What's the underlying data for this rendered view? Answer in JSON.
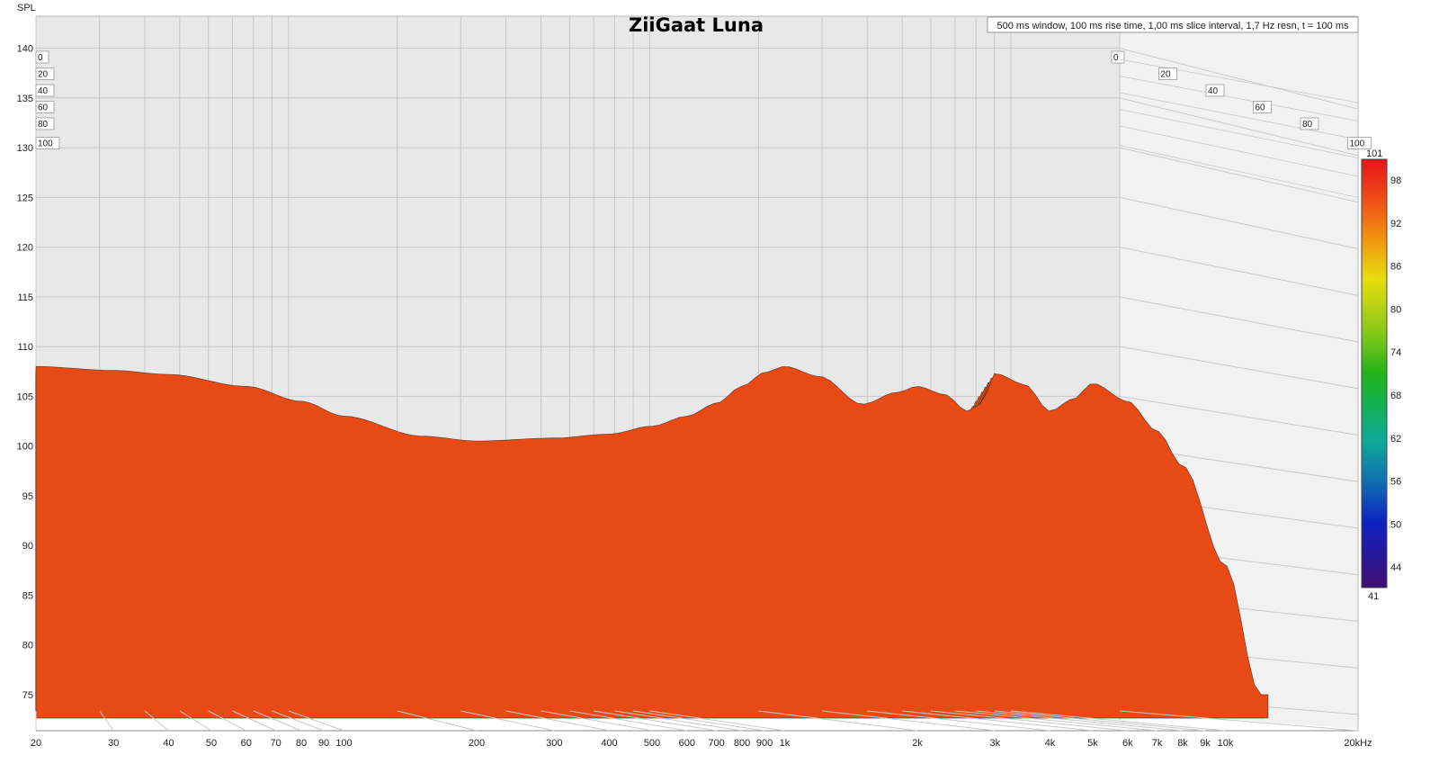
{
  "chart_data": {
    "type": "waterfall",
    "title": "ZiiGaat Luna",
    "info_box": "500 ms window, 100 ms rise time, 1,00 ms slice interval, 1,7 Hz resn, t = 100 ms",
    "ylabel": "SPL",
    "y_ticks": [
      140,
      135,
      130,
      125,
      120,
      115,
      110,
      105,
      100,
      95,
      90,
      85,
      80,
      75
    ],
    "ylim": [
      72,
      141
    ],
    "x_ticks": [
      {
        "f": 20,
        "label": "20"
      },
      {
        "f": 30,
        "label": "30"
      },
      {
        "f": 40,
        "label": "40"
      },
      {
        "f": 50,
        "label": "50"
      },
      {
        "f": 60,
        "label": "60"
      },
      {
        "f": 70,
        "label": "70"
      },
      {
        "f": 80,
        "label": "80"
      },
      {
        "f": 90,
        "label": "90"
      },
      {
        "f": 100,
        "label": "100"
      },
      {
        "f": 200,
        "label": "200"
      },
      {
        "f": 300,
        "label": "300"
      },
      {
        "f": 400,
        "label": "400"
      },
      {
        "f": 500,
        "label": "500"
      },
      {
        "f": 600,
        "label": "600"
      },
      {
        "f": 700,
        "label": "700"
      },
      {
        "f": 800,
        "label": "800"
      },
      {
        "f": 900,
        "label": "900"
      },
      {
        "f": 1000,
        "label": "1k"
      },
      {
        "f": 2000,
        "label": "2k"
      },
      {
        "f": 3000,
        "label": "3k"
      },
      {
        "f": 4000,
        "label": "4k"
      },
      {
        "f": 5000,
        "label": "5k"
      },
      {
        "f": 6000,
        "label": "6k"
      },
      {
        "f": 7000,
        "label": "7k"
      },
      {
        "f": 8000,
        "label": "8k"
      },
      {
        "f": 9000,
        "label": "9k"
      },
      {
        "f": 10000,
        "label": "10k"
      },
      {
        "f": 20000,
        "label": "20kHz"
      }
    ],
    "xlim": [
      20,
      20000
    ],
    "x_scale": "log",
    "time_axis_ticks": [
      "0",
      "20",
      "40",
      "60",
      "80",
      "100"
    ],
    "time_range_ms": [
      0,
      100
    ],
    "colorbar": {
      "min_label": "41",
      "max_label": "101",
      "ticks": [
        "98",
        "92",
        "86",
        "80",
        "74",
        "68",
        "62",
        "56",
        "50",
        "44"
      ]
    },
    "front_slice_t0": {
      "freq": [
        20,
        30,
        40,
        60,
        80,
        100,
        150,
        200,
        300,
        400,
        500,
        600,
        700,
        800,
        900,
        1000,
        1200,
        1500,
        1800,
        2000,
        2300,
        2600,
        2800,
        3000,
        3500,
        4000,
        4500,
        5000,
        6000,
        7000,
        8000,
        10000,
        12000
      ],
      "spl": [
        108,
        107.6,
        107.2,
        106,
        104.5,
        103,
        101,
        100.5,
        100.8,
        101.2,
        102,
        103,
        104.3,
        106,
        107.4,
        108,
        107,
        104.2,
        105.4,
        106,
        105.2,
        103.5,
        104.3,
        107.3,
        106.2,
        103.5,
        104.7,
        106.3,
        104.5,
        101.5,
        98,
        88,
        75
      ]
    },
    "grid": true
  }
}
